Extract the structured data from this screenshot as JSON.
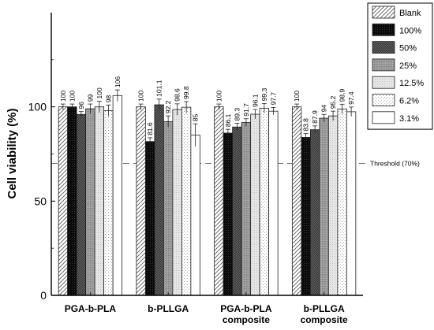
{
  "chart_data": {
    "type": "bar",
    "ylabel": "Cell viability (%)",
    "xlabel": "",
    "ylim": [
      0,
      150
    ],
    "yticks": [
      0,
      50,
      100
    ],
    "categories": [
      [
        "PGA-b-PLA"
      ],
      [
        "b-PLLGA"
      ],
      [
        "PGA-b-PLA",
        "composite"
      ],
      [
        "b-PLLGA",
        "composite"
      ]
    ],
    "series": [
      {
        "name": "Blank",
        "values": [
          100,
          100,
          100,
          100
        ],
        "errors": [
          1.5,
          1.5,
          1.5,
          1.5
        ],
        "labels": [
          "100",
          "100",
          "100",
          "100"
        ],
        "pattern": "diag"
      },
      {
        "name": "100%",
        "values": [
          100,
          81.6,
          86.1,
          83.8
        ],
        "errors": [
          1.5,
          2,
          2,
          2
        ],
        "labels": [
          "100",
          "81.6",
          "86.1",
          "83.8"
        ],
        "pattern": "black"
      },
      {
        "name": "50%",
        "values": [
          96,
          101.1,
          89.3,
          87.9
        ],
        "errors": [
          1.5,
          3,
          2,
          2
        ],
        "labels": [
          "96",
          "101.1",
          "89.3",
          "87.9"
        ],
        "pattern": "check"
      },
      {
        "name": "25%",
        "values": [
          99,
          92.2,
          91.7,
          94
        ],
        "errors": [
          2.5,
          3,
          2,
          2
        ],
        "labels": [
          "99",
          "92.2",
          "91.7",
          "94"
        ],
        "pattern": "gray"
      },
      {
        "name": "12.5%",
        "values": [
          100,
          98.6,
          96.1,
          95.2
        ],
        "errors": [
          3,
          3,
          2.5,
          2.5
        ],
        "labels": [
          "100",
          "98.6",
          "96.1",
          "95.2"
        ],
        "pattern": "light"
      },
      {
        "name": "6.2%",
        "values": [
          98,
          99.8,
          99.3,
          98.9
        ],
        "errors": [
          3,
          3,
          2.5,
          2.5
        ],
        "labels": [
          "98",
          "99.8",
          "99.3",
          "98.9"
        ],
        "pattern": "dots"
      },
      {
        "name": "3.1%",
        "values": [
          106,
          85,
          97.7,
          97.4
        ],
        "errors": [
          3,
          6,
          2,
          2.5
        ],
        "labels": [
          "106",
          "85",
          "97.7",
          "97.4"
        ],
        "pattern": "white"
      }
    ],
    "threshold": {
      "value": 70,
      "label": "Threshold (70%)"
    },
    "legend_position": "top-right",
    "grid": false
  }
}
